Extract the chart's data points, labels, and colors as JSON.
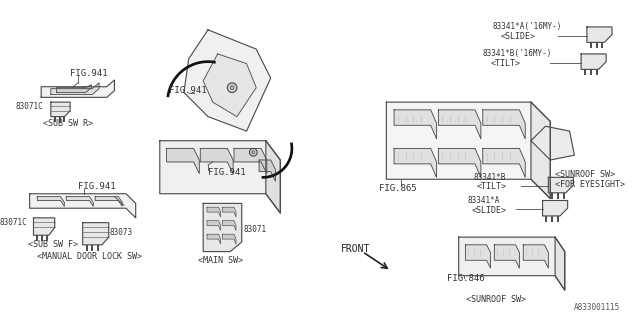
{
  "bg_color": "#ffffff",
  "line_color": "#4a4a4a",
  "text_color": "#333333",
  "diagram_id": "A833001115",
  "labels": {
    "fig941_1": "FIG.941",
    "fig941_2": "FIG.941",
    "fig941_3": "FIG.941",
    "fig865": "FIG.865",
    "fig846": "FIG.846",
    "part_83071C_r": "83071C",
    "sub_sw_r": "<SUB SW R>",
    "part_83071C_f": "83071C",
    "sub_sw_f": "<SUB SW F>",
    "part_83073": "83073",
    "manual_door_lock": "<MANUAL DOOR LOCK SW>",
    "part_83071": "83071",
    "main_sw": "<MAIN SW>",
    "part_83341A_top": "83341*A('16MY-)",
    "slide_top": "<SLIDE>",
    "part_83341B_top": "83341*B('16MY-)",
    "tilt_top": "<TILT>",
    "sunroof_eyesight": "<SUNROOF SW>",
    "for_eyesight": "<FOR EYESIGHT>",
    "part_83341B_bot": "83341*B",
    "tilt_bot": "<TILT>",
    "part_83341A_bot": "83341*A",
    "slide_bot": "<SLIDE>",
    "sunroof_sw": "<SUNROOF SW>",
    "front_label": "FRONT"
  }
}
